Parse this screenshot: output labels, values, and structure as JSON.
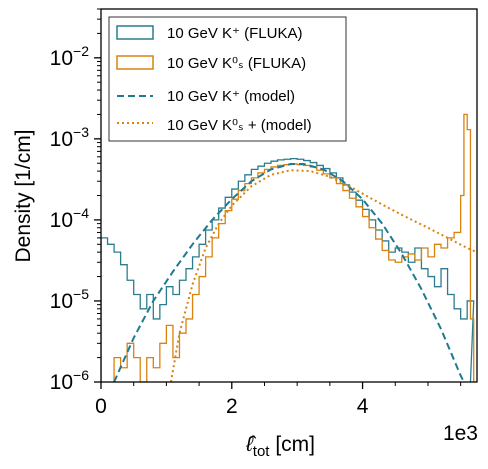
{
  "chart_data": {
    "type": "line",
    "title": "",
    "xlabel_main": "ℓ̂",
    "xlabel_sub": "tot",
    "xlabel_unit": " [cm]",
    "ylabel": "Density [1/cm]",
    "x_multiplier": "1e3",
    "xlim": [
      0,
      5.75
    ],
    "ylim": [
      1e-06,
      0.04
    ],
    "y_scale": "log",
    "grid": false,
    "legend_position": "top-left",
    "x_ticks": [
      {
        "value": 0,
        "label": "0"
      },
      {
        "value": 2,
        "label": "2"
      },
      {
        "value": 4,
        "label": "4"
      }
    ],
    "x_minor_ticks": [
      0.5,
      1,
      1.5,
      2.5,
      3,
      3.5,
      4.5,
      5,
      5.5
    ],
    "y_ticks": [
      {
        "value": 1e-06,
        "base": "10",
        "exp": "−6"
      },
      {
        "value": 1e-05,
        "base": "10",
        "exp": "−5"
      },
      {
        "value": 0.0001,
        "base": "10",
        "exp": "−4"
      },
      {
        "value": 0.001,
        "base": "10",
        "exp": "−3"
      },
      {
        "value": 0.01,
        "base": "10",
        "exp": "−2"
      }
    ],
    "legend": [
      {
        "label": "10 GeV K⁺ (FLUKA)",
        "style": "step",
        "color": "#2b7d8e"
      },
      {
        "label": "10 GeV K⁰ₛ (FLUKA)",
        "style": "step",
        "color": "#d9820f"
      },
      {
        "label": "10 GeV K⁺ (model)",
        "style": "dashed",
        "color": "#1f7a90"
      },
      {
        "label": "10 GeV K⁰ₛ + (model)",
        "style": "dotted",
        "color": "#d9820f"
      }
    ],
    "series": [
      {
        "name": "10 GeV K⁺ (FLUKA)",
        "kind": "step",
        "color": "#2b7d8e",
        "points": [
          [
            0,
            6e-05
          ],
          [
            0.1,
            5e-05
          ],
          [
            0.2,
            4e-05
          ],
          [
            0.3,
            2.8e-05
          ],
          [
            0.4,
            1.8e-05
          ],
          [
            0.5,
            1.2e-05
          ],
          [
            0.6,
            8e-06
          ],
          [
            0.7,
            1.2e-05
          ],
          [
            0.8,
            6e-06
          ],
          [
            0.9,
            9e-06
          ],
          [
            1.0,
            1.5e-05
          ],
          [
            1.1,
            1.2e-05
          ],
          [
            1.2,
            1.8e-05
          ],
          [
            1.3,
            2.5e-05
          ],
          [
            1.4,
            3.5e-05
          ],
          [
            1.5,
            5e-05
          ],
          [
            1.6,
            7.5e-05
          ],
          [
            1.7,
            0.0001
          ],
          [
            1.8,
            0.00014
          ],
          [
            1.9,
            0.00019
          ],
          [
            2.0,
            0.00024
          ],
          [
            2.1,
            0.0003
          ],
          [
            2.2,
            0.00036
          ],
          [
            2.3,
            0.00042
          ],
          [
            2.4,
            0.00046
          ],
          [
            2.5,
            0.0005
          ],
          [
            2.6,
            0.00053
          ],
          [
            2.7,
            0.00055
          ],
          [
            2.8,
            0.00056
          ],
          [
            2.9,
            0.00057
          ],
          [
            3.0,
            0.00056
          ],
          [
            3.1,
            0.00054
          ],
          [
            3.2,
            0.00051
          ],
          [
            3.3,
            0.00047
          ],
          [
            3.4,
            0.00043
          ],
          [
            3.5,
            0.00038
          ],
          [
            3.6,
            0.00033
          ],
          [
            3.7,
            0.00027
          ],
          [
            3.8,
            0.00022
          ],
          [
            3.9,
            0.000175
          ],
          [
            4.0,
            0.000135
          ],
          [
            4.1,
            0.0001
          ],
          [
            4.2,
            7.5e-05
          ],
          [
            4.3,
            5.5e-05
          ],
          [
            4.4,
            4e-05
          ],
          [
            4.5,
            4.5e-05
          ],
          [
            4.6,
            4e-05
          ],
          [
            4.7,
            3e-05
          ],
          [
            4.8,
            4.5e-05
          ],
          [
            4.9,
            2.5e-05
          ],
          [
            5.0,
            2e-05
          ],
          [
            5.1,
            1.5e-05
          ],
          [
            5.2,
            2.5e-05
          ],
          [
            5.3,
            1.2e-05
          ],
          [
            5.4,
            8e-06
          ],
          [
            5.5,
            6e-06
          ],
          [
            5.6,
            1e-05
          ]
        ]
      },
      {
        "name": "10 GeV K⁰ₛ (FLUKA)",
        "kind": "step",
        "color": "#d9820f",
        "points": [
          [
            0.2,
            2e-06
          ],
          [
            0.3,
            1.5e-06
          ],
          [
            0.4,
            3e-06
          ],
          [
            0.5,
            2e-06
          ],
          [
            0.6,
            1e-06
          ],
          [
            0.7,
            2e-06
          ],
          [
            0.8,
            1.5e-06
          ],
          [
            0.9,
            3e-06
          ],
          [
            1.0,
            5e-06
          ],
          [
            1.1,
            2e-06
          ],
          [
            1.2,
            4e-06
          ],
          [
            1.3,
            6e-06
          ],
          [
            1.4,
            1.2e-05
          ],
          [
            1.5,
            2e-05
          ],
          [
            1.6,
            3.5e-05
          ],
          [
            1.7,
            6e-05
          ],
          [
            1.8,
            9e-05
          ],
          [
            1.9,
            0.00013
          ],
          [
            2.0,
            0.00018
          ],
          [
            2.1,
            0.00023
          ],
          [
            2.2,
            0.00028
          ],
          [
            2.3,
            0.00033
          ],
          [
            2.4,
            0.00038
          ],
          [
            2.5,
            0.00042
          ],
          [
            2.6,
            0.00045
          ],
          [
            2.7,
            0.00047
          ],
          [
            2.8,
            0.00048
          ],
          [
            2.9,
            0.00049
          ],
          [
            3.0,
            0.00048
          ],
          [
            3.1,
            0.00047
          ],
          [
            3.2,
            0.00045
          ],
          [
            3.3,
            0.00041
          ],
          [
            3.4,
            0.00037
          ],
          [
            3.5,
            0.00033
          ],
          [
            3.6,
            0.00028
          ],
          [
            3.7,
            0.00023
          ],
          [
            3.8,
            0.000185
          ],
          [
            3.9,
            0.000145
          ],
          [
            4.0,
            0.00011
          ],
          [
            4.1,
            8e-05
          ],
          [
            4.2,
            5.8e-05
          ],
          [
            4.3,
            4.2e-05
          ],
          [
            4.4,
            3.2e-05
          ],
          [
            4.5,
            3e-05
          ],
          [
            4.6,
            3.5e-05
          ],
          [
            4.7,
            3.8e-05
          ],
          [
            4.8,
            3.2e-05
          ],
          [
            4.9,
            4.5e-05
          ],
          [
            5.0,
            3.5e-05
          ],
          [
            5.1,
            5e-05
          ],
          [
            5.2,
            4.5e-05
          ],
          [
            5.3,
            6e-05
          ],
          [
            5.4,
            7e-05
          ],
          [
            5.5,
            0.0002
          ],
          [
            5.55,
            0.002
          ],
          [
            5.6,
            0.0013
          ],
          [
            5.65,
            6e-06
          ]
        ]
      },
      {
        "name": "10 GeV K⁺ (model)",
        "kind": "dashed",
        "color": "#1f7a90",
        "points": [
          [
            0.2,
            1e-06
          ],
          [
            0.5,
            3.5e-06
          ],
          [
            0.8,
            1e-05
          ],
          [
            1.1,
            2.3e-05
          ],
          [
            1.4,
            5e-05
          ],
          [
            1.7,
            0.0001
          ],
          [
            2.0,
            0.00018
          ],
          [
            2.3,
            0.0003
          ],
          [
            2.6,
            0.00042
          ],
          [
            2.9,
            0.00049
          ],
          [
            3.1,
            0.00049
          ],
          [
            3.4,
            0.00042
          ],
          [
            3.7,
            0.0003
          ],
          [
            4.0,
            0.00018
          ],
          [
            4.3,
            9e-05
          ],
          [
            4.6,
            3.8e-05
          ],
          [
            4.9,
            1.4e-05
          ],
          [
            5.2,
            4.5e-06
          ],
          [
            5.5,
            1.2e-06
          ],
          [
            5.55,
            1e-06
          ]
        ]
      },
      {
        "name": "10 GeV K⁰ₛ + (model)",
        "kind": "dotted",
        "color": "#d9820f",
        "points": [
          [
            1.07,
            1e-06
          ],
          [
            1.2,
            4e-06
          ],
          [
            1.4,
            1.6e-05
          ],
          [
            1.6,
            4.5e-05
          ],
          [
            1.8,
            9e-05
          ],
          [
            2.0,
            0.00015
          ],
          [
            2.3,
            0.00026
          ],
          [
            2.6,
            0.00036
          ],
          [
            2.9,
            0.00041
          ],
          [
            3.2,
            0.0004
          ],
          [
            3.5,
            0.00034
          ],
          [
            3.8,
            0.00026
          ],
          [
            4.1,
            0.00019
          ],
          [
            4.4,
            0.00014
          ],
          [
            4.7,
            0.000105
          ],
          [
            5.0,
            8e-05
          ],
          [
            5.3,
            6e-05
          ],
          [
            5.6,
            4.5e-05
          ],
          [
            5.75,
            4e-05
          ]
        ]
      }
    ]
  }
}
